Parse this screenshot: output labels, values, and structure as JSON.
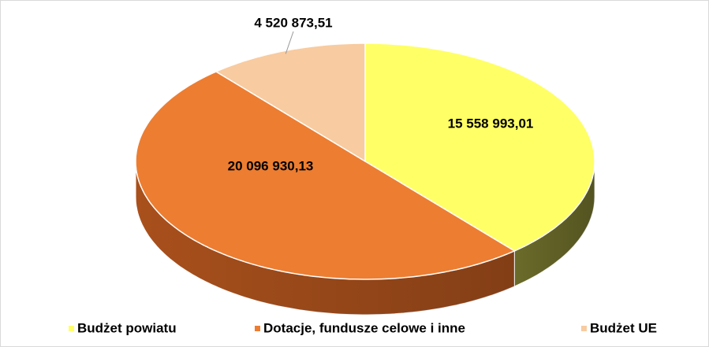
{
  "chart_data": {
    "type": "pie3d",
    "categories": [
      "Budżet powiatu",
      "Dotacje, fundusze celowe i inne",
      "Budżet UE"
    ],
    "values": [
      15558993.01,
      20096930.13,
      4520873.51
    ],
    "value_labels": [
      "15 558 993,01",
      "20 096 930,13",
      "4 520 873,51"
    ],
    "colors": [
      "#ffff66",
      "#ed7d31",
      "#f8cba0"
    ],
    "side_colors": [
      "#6b6b2a",
      "#a9501c",
      "#c9a07a"
    ],
    "legend": "bottom"
  }
}
